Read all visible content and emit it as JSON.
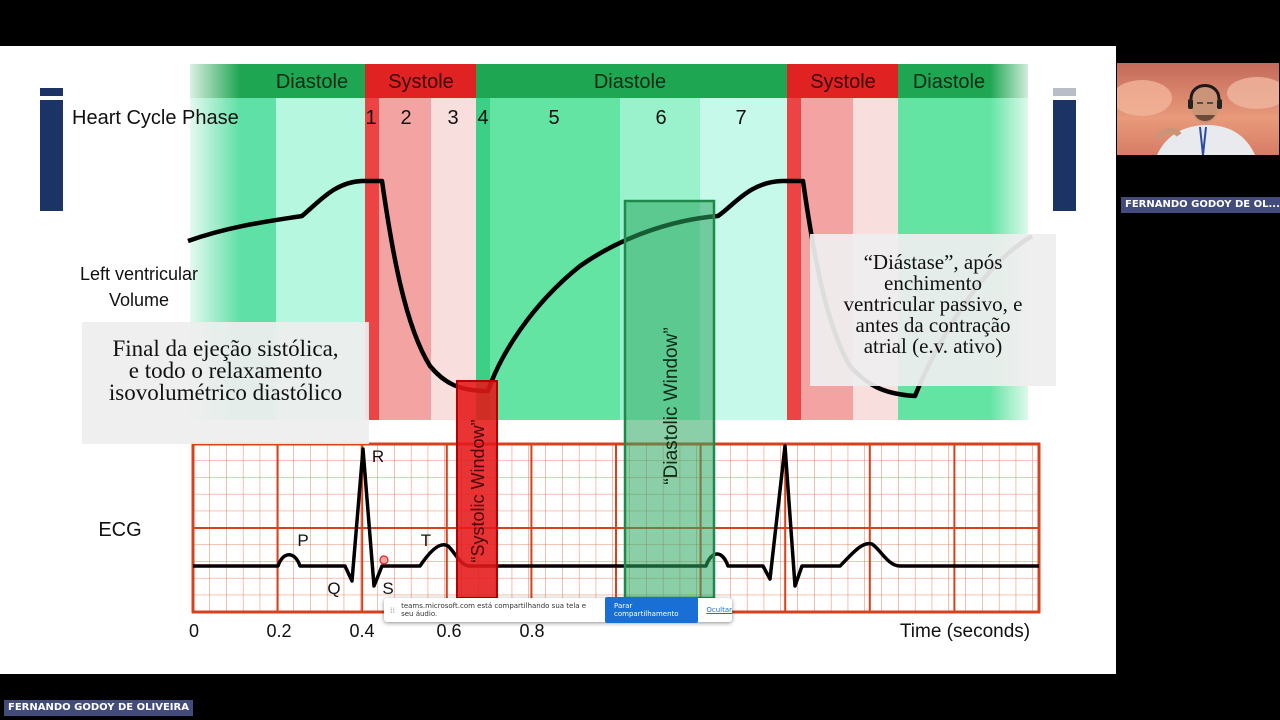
{
  "slide": {
    "phase_bar": {
      "row_label": "Heart Cycle Phase",
      "segments": [
        "Diastole",
        "Systole",
        "Diastole",
        "Systole",
        "Diastole"
      ],
      "phase_numbers": [
        "1",
        "2",
        "3",
        "4",
        "5",
        "6",
        "7"
      ]
    },
    "lv_label_line1": "Left ventricular",
    "lv_label_line2": "Volume",
    "ecg_label": "ECG",
    "ecg_waves": {
      "p": "P",
      "q": "Q",
      "r": "R",
      "s": "S",
      "t": "T"
    },
    "time_ticks": [
      "0",
      "0.2",
      "0.4",
      "0.6",
      "0.8"
    ],
    "time_axis_label": "Time (seconds)",
    "systolic_window_label": "“Systolic Window”",
    "diastolic_window_label": "“Diastolic Window”",
    "caption_left": {
      "line1": "Final da ejeção sistólica,",
      "line2": "e todo o relaxamento",
      "line3": "isovolumétrico diastólico"
    },
    "caption_right": {
      "line1": "“Diástase”, após",
      "line2": "enchimento",
      "line3": "ventricular passivo, e",
      "line4": "antes da contração",
      "line5": "atrial (e.v. ativo)"
    }
  },
  "participant": {
    "name_short": "FERNANDO GODOY DE OL..."
  },
  "presenter": {
    "name": "FERNANDO GODOY DE OLIVEIRA"
  },
  "share_bar": {
    "message": "teams.microsoft.com está compartilhando sua tela e seu áudio.",
    "stop_label": "Parar compartilhamento",
    "hide_label": "Ocultar"
  },
  "colors": {
    "diastole": "#1fa653",
    "systole": "#e02222",
    "ecg_grid": "#d9401c",
    "deco_blue": "#1c3366",
    "name_tag": "#424b7a",
    "share_button": "#1a6fd6"
  }
}
